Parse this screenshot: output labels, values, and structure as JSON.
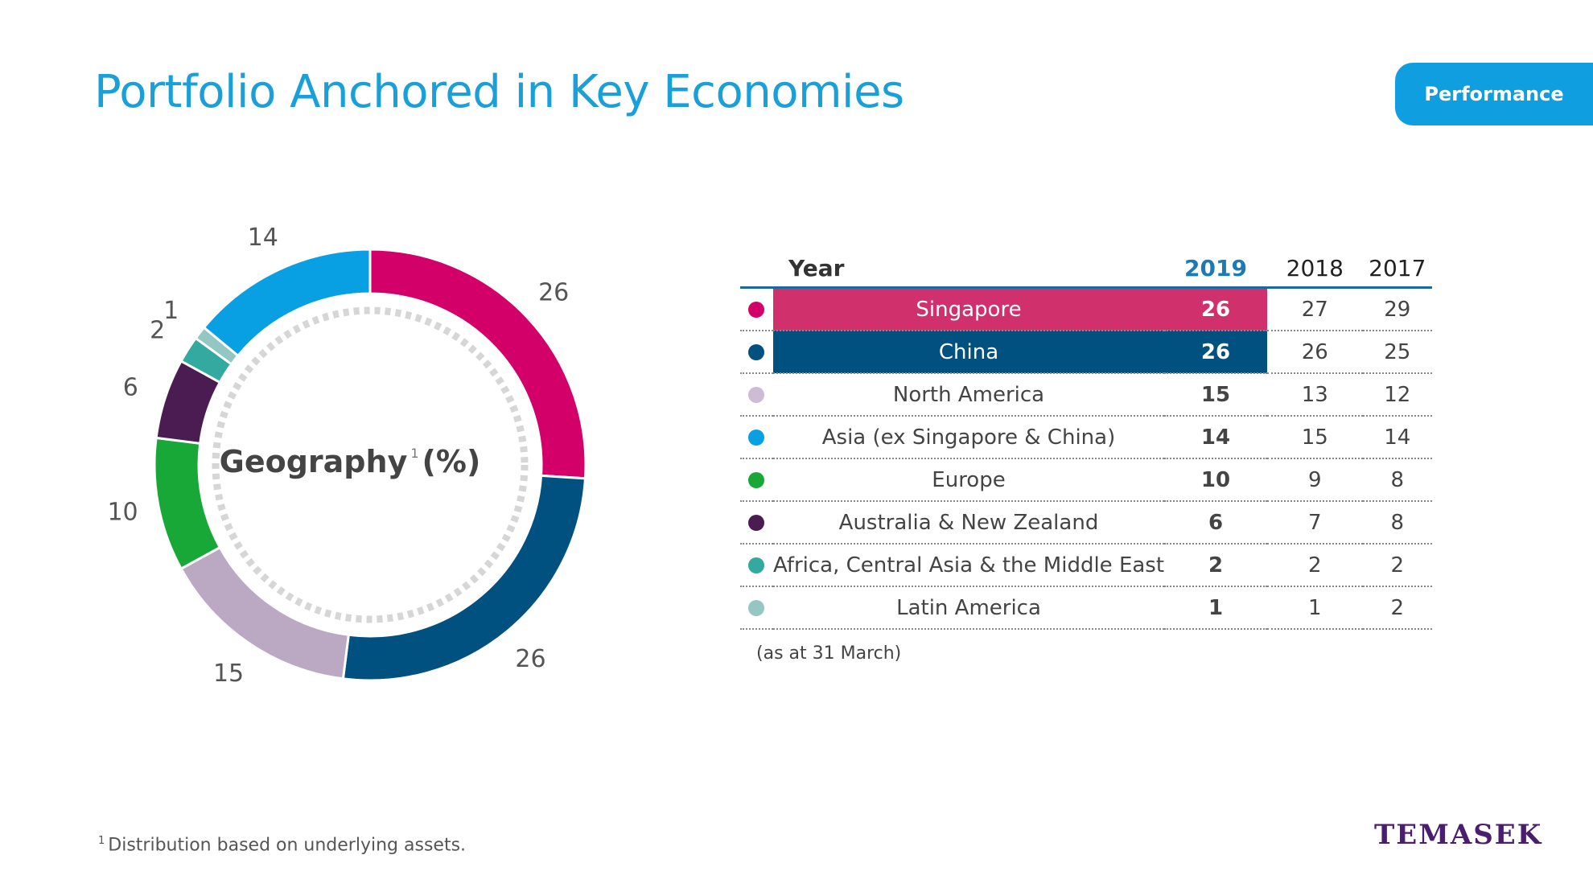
{
  "header": {
    "title": "Portfolio Anchored in Key Economies",
    "tab_label": "Performance"
  },
  "chart_data": [
    {
      "type": "pie",
      "title": "Geography",
      "title_sup": "1",
      "title_unit": "(%)",
      "categories": [
        "Singapore",
        "China",
        "North America",
        "Europe",
        "Australia & New Zealand",
        "Africa, Central Asia the Middle East",
        "Latin America",
        "Asia (ex Singapore & China)"
      ],
      "values": [
        26,
        26,
        15,
        10,
        6,
        2,
        1,
        14
      ],
      "colors": [
        "#d4006a",
        "#005080",
        "#bba8c3",
        "#18a838",
        "#4b1c52",
        "#33aaa0",
        "#94c6c3",
        "#08a0e2"
      ]
    },
    {
      "type": "table",
      "header": {
        "year_label": "Year",
        "years": [
          "2019",
          "2018",
          "2017"
        ]
      },
      "rows": [
        {
          "region": "Singapore",
          "v2019": "26",
          "v2018": "27",
          "v2017": "29",
          "color": "#d4006a",
          "highlight": "#d0306c"
        },
        {
          "region": "China",
          "v2019": "26",
          "v2018": "26",
          "v2017": "25",
          "color": "#005080",
          "highlight": "#005080"
        },
        {
          "region": "North America",
          "v2019": "15",
          "v2018": "13",
          "v2017": "12",
          "color": "#cdbcd4"
        },
        {
          "region": "Asia (ex Singapore & China)",
          "v2019": "14",
          "v2018": "15",
          "v2017": "14",
          "color": "#08a0e2"
        },
        {
          "region": "Europe",
          "v2019": "10",
          "v2018": "9",
          "v2017": "8",
          "color": "#18a838"
        },
        {
          "region": "Australia & New Zealand",
          "v2019": "6",
          "v2018": "7",
          "v2017": "8",
          "color": "#4b1c52"
        },
        {
          "region": "Africa, Central Asia & the Middle East",
          "v2019": "2",
          "v2018": "2",
          "v2017": "2",
          "color": "#33aaa0"
        },
        {
          "region": "Latin America",
          "v2019": "1",
          "v2018": "1",
          "v2017": "2",
          "color": "#94c6c3"
        }
      ],
      "note": "(as at 31 March)"
    }
  ],
  "footnote": {
    "sup": "1",
    "text": "Distribution based on underlying assets."
  },
  "logo": "TEMASEK"
}
